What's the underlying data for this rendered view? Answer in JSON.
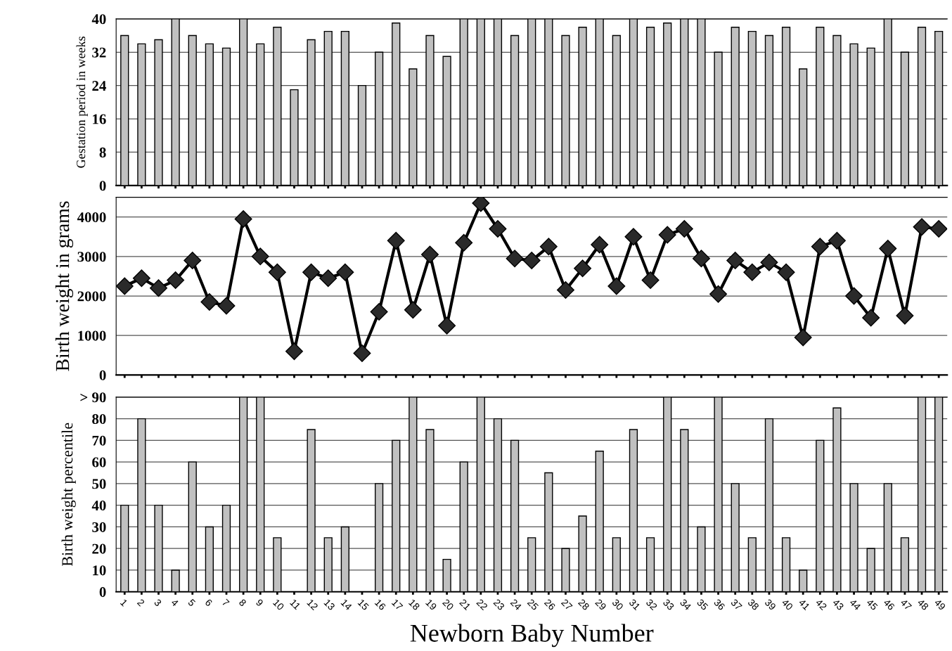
{
  "chart_data": [
    {
      "type": "bar",
      "ylabel": "Gestation period in weeks",
      "color": "#c0c0c0",
      "grid": "y",
      "tick_labels": "y",
      "ylim": [
        0,
        40
      ],
      "yticks": [
        0,
        8,
        16,
        24,
        32,
        40
      ],
      "categories": [
        "1",
        "2",
        "3",
        "4",
        "5",
        "6",
        "7",
        "8",
        "9",
        "10",
        "11",
        "12",
        "13",
        "14",
        "15",
        "16",
        "17",
        "18",
        "19",
        "20",
        "21",
        "22",
        "23",
        "24",
        "25",
        "26",
        "27",
        "28",
        "29",
        "30",
        "31",
        "32",
        "33",
        "34",
        "35",
        "36",
        "37",
        "38",
        "39",
        "40",
        "41",
        "42",
        "43",
        "44",
        "45",
        "46",
        "47",
        "48",
        "49"
      ],
      "values": [
        36,
        34,
        35,
        40,
        36,
        34,
        33,
        40,
        34,
        38,
        23,
        35,
        37,
        37,
        24,
        32,
        39,
        28,
        36,
        31,
        40,
        40,
        40,
        36,
        40,
        40,
        36,
        38,
        40,
        36,
        40,
        38,
        39,
        40,
        40,
        32,
        38,
        37,
        36,
        38,
        28,
        38,
        36,
        34,
        33,
        40,
        32,
        38,
        37
      ]
    },
    {
      "type": "line",
      "ylabel": "Birth weight in grams",
      "color": "#000000",
      "marker": "diamond",
      "line_style": "solid",
      "grid": "y",
      "tick_labels": "y",
      "ylim": [
        0,
        4500
      ],
      "yticks": [
        0,
        1000,
        2000,
        3000,
        4000
      ],
      "categories": [
        "1",
        "2",
        "3",
        "4",
        "5",
        "6",
        "7",
        "8",
        "9",
        "10",
        "11",
        "12",
        "13",
        "14",
        "15",
        "16",
        "17",
        "18",
        "19",
        "20",
        "21",
        "22",
        "23",
        "24",
        "25",
        "26",
        "27",
        "28",
        "29",
        "30",
        "31",
        "32",
        "33",
        "34",
        "35",
        "36",
        "37",
        "38",
        "39",
        "40",
        "41",
        "42",
        "43",
        "44",
        "45",
        "46",
        "47",
        "48",
        "49"
      ],
      "values": [
        2250,
        2450,
        2200,
        2400,
        2900,
        1850,
        1750,
        3950,
        3000,
        2600,
        600,
        2600,
        2450,
        2600,
        550,
        1600,
        3400,
        1650,
        3050,
        1250,
        3350,
        4350,
        3700,
        2950,
        2900,
        3250,
        2150,
        2700,
        3300,
        2250,
        3500,
        2400,
        3550,
        3700,
        2950,
        2050,
        2900,
        2600,
        2850,
        2600,
        950,
        3250,
        3400,
        2000,
        1450,
        3200,
        1500,
        3750,
        3700
      ]
    },
    {
      "type": "bar",
      "ylabel": "Birth weight percentile",
      "xlabel": "Newborn Baby Number",
      "color": "#c0c0c0",
      "grid": "y",
      "ylim": [
        0,
        90
      ],
      "yticks": [
        0,
        10,
        20,
        30,
        40,
        50,
        60,
        70,
        80,
        {
          "value": 90,
          "label": "> 90"
        }
      ],
      "categories": [
        "1",
        "2",
        "3",
        "4",
        "5",
        "6",
        "7",
        "8",
        "9",
        "10",
        "11",
        "12",
        "13",
        "14",
        "15",
        "16",
        "17",
        "18",
        "19",
        "20",
        "21",
        "22",
        "23",
        "24",
        "25",
        "26",
        "27",
        "28",
        "29",
        "30",
        "31",
        "32",
        "33",
        "34",
        "35",
        "36",
        "37",
        "38",
        "39",
        "40",
        "41",
        "42",
        "43",
        "44",
        "45",
        "46",
        "47",
        "48",
        "49"
      ],
      "values": [
        40,
        80,
        40,
        10,
        60,
        30,
        40,
        90,
        90,
        25,
        0,
        75,
        25,
        30,
        0,
        50,
        70,
        90,
        75,
        15,
        60,
        90,
        80,
        70,
        25,
        55,
        20,
        35,
        65,
        25,
        75,
        25,
        90,
        75,
        30,
        90,
        50,
        25,
        80,
        25,
        10,
        70,
        85,
        50,
        20,
        50,
        25,
        90,
        90
      ]
    }
  ]
}
